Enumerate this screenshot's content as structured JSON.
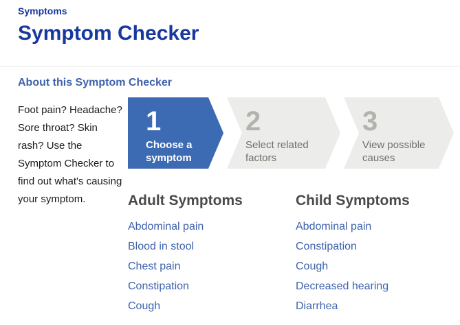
{
  "page": {
    "breadcrumb": "Symptoms",
    "title": "Symptom Checker",
    "about_link": "About this Symptom Checker",
    "intro": "Foot pain? Headache? Sore throat? Skin rash? Use the Symptom Checker to find out what's causing your symptom."
  },
  "wizard": {
    "steps": [
      {
        "number": "1",
        "label": "Choose a symptom",
        "active": true
      },
      {
        "number": "2",
        "label": "Select related factors",
        "active": false
      },
      {
        "number": "3",
        "label": "View possible causes",
        "active": false
      }
    ]
  },
  "columns": [
    {
      "heading": "Adult Symptoms",
      "links": [
        "Abdominal pain",
        "Blood in stool",
        "Chest pain",
        "Constipation",
        "Cough"
      ]
    },
    {
      "heading": "Child Symptoms",
      "links": [
        "Abdominal pain",
        "Constipation",
        "Cough",
        "Decreased hearing",
        "Diarrhea"
      ]
    }
  ],
  "colors": {
    "title_blue": "#17389e",
    "link_blue": "#3d62ad",
    "active_step_blue": "#3d6bb3",
    "inactive_step_bg": "#ececea",
    "inactive_step_number": "#b3b3ae",
    "heading_gray": "#4a4a4a"
  }
}
